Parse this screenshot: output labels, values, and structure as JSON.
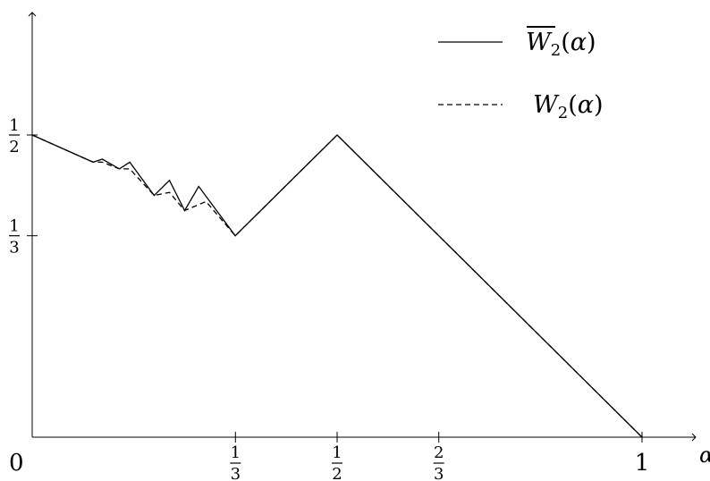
{
  "chart_data": {
    "type": "line",
    "title": "",
    "xlabel": "α",
    "ylabel": "",
    "xlim": [
      0,
      1
    ],
    "ylim": [
      0,
      0.5
    ],
    "grid": false,
    "legend_position": "top-right",
    "x_ticks": [
      {
        "value": 0,
        "kind": "plain",
        "text": "0"
      },
      {
        "value": 0.3333,
        "kind": "frac",
        "num": "1",
        "den": "3"
      },
      {
        "value": 0.5,
        "kind": "frac",
        "num": "1",
        "den": "2"
      },
      {
        "value": 0.6667,
        "kind": "frac",
        "num": "2",
        "den": "3"
      },
      {
        "value": 1,
        "kind": "plain",
        "text": "1"
      }
    ],
    "y_ticks": [
      {
        "value": 0.5,
        "num": "1",
        "den": "2"
      },
      {
        "value": 0.3333,
        "num": "1",
        "den": "3"
      }
    ],
    "series": [
      {
        "name": "W̅₂(α)",
        "legend_main": "W",
        "legend_sub": "2",
        "legend_tail": "(α)",
        "overline": true,
        "style": "solid",
        "x": [
          0,
          0.1,
          0.115,
          0.143,
          0.16,
          0.2,
          0.225,
          0.25,
          0.273,
          0.333,
          0.5,
          1
        ],
        "y": [
          0.5,
          0.455,
          0.46,
          0.444,
          0.455,
          0.4,
          0.425,
          0.375,
          0.415,
          0.3333,
          0.5,
          0
        ]
      },
      {
        "name": "W₂(α)",
        "legend_main": "W",
        "legend_sub": "2",
        "legend_tail": "(α)",
        "overline": false,
        "style": "dashed",
        "x": [
          0,
          0.1,
          0.115,
          0.143,
          0.16,
          0.2,
          0.225,
          0.25,
          0.285,
          0.333,
          0.5,
          1
        ],
        "y": [
          0.5,
          0.455,
          0.455,
          0.444,
          0.444,
          0.4,
          0.405,
          0.375,
          0.39,
          0.3333,
          0.5,
          0
        ]
      }
    ]
  }
}
